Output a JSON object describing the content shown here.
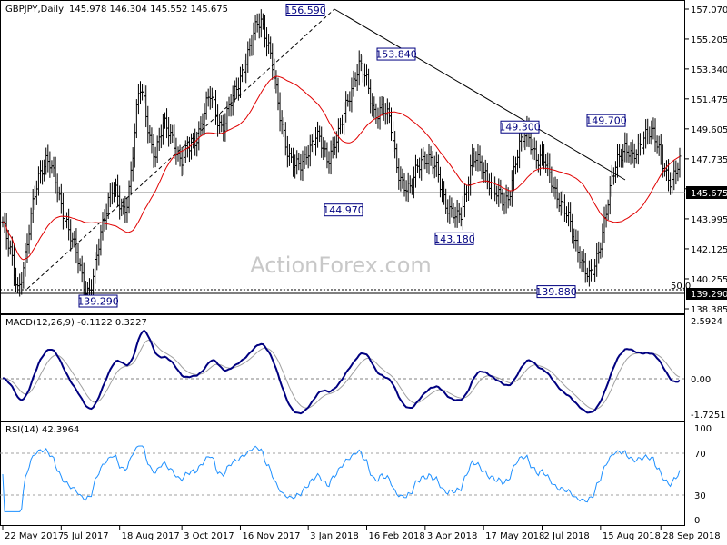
{
  "chart_data": [
    {
      "type": "line",
      "panel": "price",
      "title": "GBPJPY,Daily",
      "ohlc_readout": "145.978 146.304 145.552 145.675",
      "ylim": [
        138.385,
        157.07
      ],
      "y_ticks": [
        "157.070",
        "155.205",
        "153.340",
        "151.475",
        "149.605",
        "147.735",
        "145.870",
        "143.995",
        "142.125",
        "140.255",
        "138.385"
      ],
      "x_ticks": [
        "22 May 2017",
        "5 Jul 2017",
        "18 Aug 2017",
        "3 Oct 2017",
        "16 Nov 2017",
        "3 Jan 2018",
        "16 Feb 2018",
        "3 Apr 2018",
        "17 May 2018",
        "2 Jul 2018",
        "15 Aug 2018",
        "28 Sep 2018"
      ],
      "x_tick_index": [
        0,
        31,
        62,
        95,
        126,
        162,
        193,
        224,
        255,
        286,
        317,
        349
      ],
      "n_bars": 360,
      "series": [
        {
          "values": [
            143.8,
            142.6,
            141.8,
            140.6,
            139.6,
            140.8,
            141.8,
            143.6,
            145.2,
            146.6,
            147.3,
            147.7,
            147.4,
            146.6,
            145.8,
            144.8,
            144.2,
            143.2,
            142.4,
            141.6,
            140.6,
            139.8,
            139.5,
            140.2,
            141.4,
            142.8,
            144.2,
            145.3,
            146.1,
            145.6,
            144.6,
            144.2,
            145.3,
            147.6,
            150.4,
            152.2,
            151.3,
            149.8,
            148.6,
            148.2,
            149.0,
            149.8,
            149.5,
            149.2,
            148.8,
            147.8,
            147.6,
            148.1,
            148.5,
            148.8,
            149.5,
            150.2,
            151.0,
            151.6,
            151.0,
            150.2,
            149.8,
            150.2,
            151.0,
            151.5,
            152.3,
            153.1,
            153.9,
            154.5,
            155.3,
            156.0,
            156.4,
            155.7,
            154.8,
            153.4,
            151.5,
            150.1,
            149.1,
            148.2,
            147.6,
            147.2,
            147.1,
            147.6,
            148.4,
            148.8,
            149.2,
            148.8,
            148.1,
            147.6,
            148.4,
            149.0,
            149.4,
            150.2,
            151.1,
            152.0,
            153.0,
            153.7,
            153.2,
            152.4,
            151.4,
            150.6,
            150.8,
            151.0,
            150.4,
            150.0,
            148.4,
            147.1,
            146.4,
            145.9,
            145.6,
            146.4,
            147.4,
            147.8,
            147.8,
            147.6,
            147.2,
            147.0,
            146.1,
            145.2,
            144.6,
            144.2,
            143.9,
            144.2,
            145.3,
            146.6,
            147.8,
            147.6,
            147.2,
            146.9,
            146.6,
            146.2,
            145.6,
            145.2,
            144.9,
            145.2,
            146.4,
            147.6,
            148.4,
            148.9,
            149.3,
            148.8,
            148.2,
            147.6,
            147.8,
            147.1,
            146.6,
            145.9,
            145.4,
            144.7,
            144.2,
            143.6,
            142.8,
            142.2,
            141.4,
            140.6,
            140.2,
            140.8,
            141.8,
            143.0,
            144.2,
            145.4,
            146.6,
            147.6,
            148.2,
            148.6,
            148.2,
            147.6,
            148.0,
            148.6,
            149.4,
            149.6,
            149.4,
            148.6,
            147.9,
            147.3,
            146.7,
            146.4,
            146.8,
            147.4
          ],
          "smoothing_note": ""
        }
      ],
      "annotations": [
        {
          "label": "156.590",
          "value": 156.59
        },
        {
          "label": "153.840",
          "value": 153.84
        },
        {
          "label": "149.300",
          "value": 149.3
        },
        {
          "label": "149.700",
          "value": 149.7
        },
        {
          "label": "144.970",
          "value": 144.97
        },
        {
          "label": "143.180",
          "value": 143.18
        },
        {
          "label": "139.880",
          "value": 139.88
        },
        {
          "label": "139.290",
          "value": 139.29
        }
      ],
      "fib_label": "50.0",
      "last_price_label": "145.675",
      "level_label": "139.290",
      "watermark": "ActionForex.com"
    },
    {
      "type": "line",
      "panel": "macd",
      "title": "MACD(12,26,9) -0.1122 0.3227",
      "ylim": [
        -1.7251,
        2.5924
      ],
      "y_ticks": [
        "2.5924",
        "0.00",
        "-1.7251"
      ],
      "zero_line": true
    },
    {
      "type": "line",
      "panel": "rsi",
      "title": "RSI(14) 42.3964",
      "ylim": [
        0,
        100
      ],
      "y_ticks": [
        "100",
        "70",
        "30",
        "0"
      ],
      "levels": [
        70,
        30
      ]
    }
  ]
}
